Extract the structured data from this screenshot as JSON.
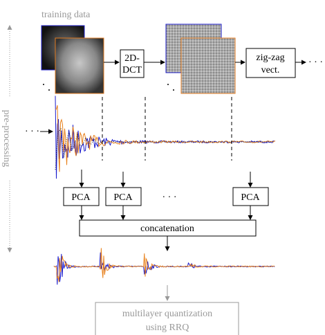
{
  "header": {
    "title": "training data"
  },
  "side_label": "pre-processing",
  "steps": {
    "dct": [
      "2D-",
      "DCT"
    ],
    "zigzag": [
      "zig-zag",
      "vect."
    ],
    "ellipsis_right": "· · ·"
  },
  "input_ellipsis": "· · ·",
  "pca": {
    "labels": [
      "PCA",
      "PCA",
      "PCA"
    ],
    "ellipsis": "· · ·"
  },
  "concatenation": "concatenation",
  "quantization": [
    "multilayer quantization",
    "using RRQ"
  ]
}
